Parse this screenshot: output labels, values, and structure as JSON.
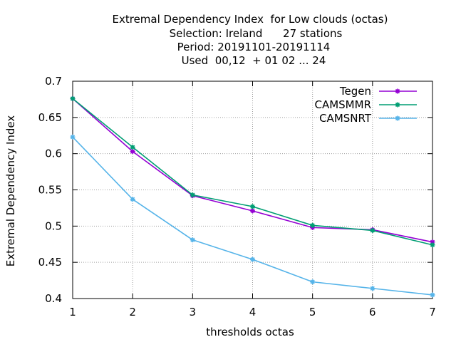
{
  "chart_data": {
    "type": "line",
    "title_lines": [
      "Extremal Dependency Index  for Low clouds (octas)",
      "Selection: Ireland      27 stations",
      "Period: 20191101-20191114",
      "Used  00,12  + 01 02 ... 24"
    ],
    "xlabel": "thresholds octas",
    "ylabel": "Extremal Dependency Index",
    "x": [
      1,
      2,
      3,
      4,
      5,
      6,
      7
    ],
    "xlim": [
      1,
      7
    ],
    "ylim": [
      0.4,
      0.7
    ],
    "xticks": [
      "1",
      "2",
      "3",
      "4",
      "5",
      "6",
      "7"
    ],
    "yticks": [
      {
        "value": 0.4,
        "label": "0.4"
      },
      {
        "value": 0.45,
        "label": "0.45"
      },
      {
        "value": 0.5,
        "label": "0.5"
      },
      {
        "value": 0.55,
        "label": "0.55"
      },
      {
        "value": 0.6,
        "label": "0.6"
      },
      {
        "value": 0.65,
        "label": "0.65"
      },
      {
        "value": 0.7,
        "label": "0.7"
      }
    ],
    "grid": true,
    "legend_position": "top-right",
    "series": [
      {
        "name": "Tegen",
        "color": "#9400d3",
        "values": [
          0.676,
          0.603,
          0.542,
          0.521,
          0.498,
          0.495,
          0.478
        ]
      },
      {
        "name": "CAMSMMR",
        "color": "#009e73",
        "values": [
          0.676,
          0.609,
          0.543,
          0.527,
          0.501,
          0.494,
          0.474
        ]
      },
      {
        "name": "CAMSNRT",
        "color": "#56b4e9",
        "values": [
          0.623,
          0.537,
          0.481,
          0.454,
          0.423,
          0.414,
          0.405
        ]
      }
    ]
  }
}
